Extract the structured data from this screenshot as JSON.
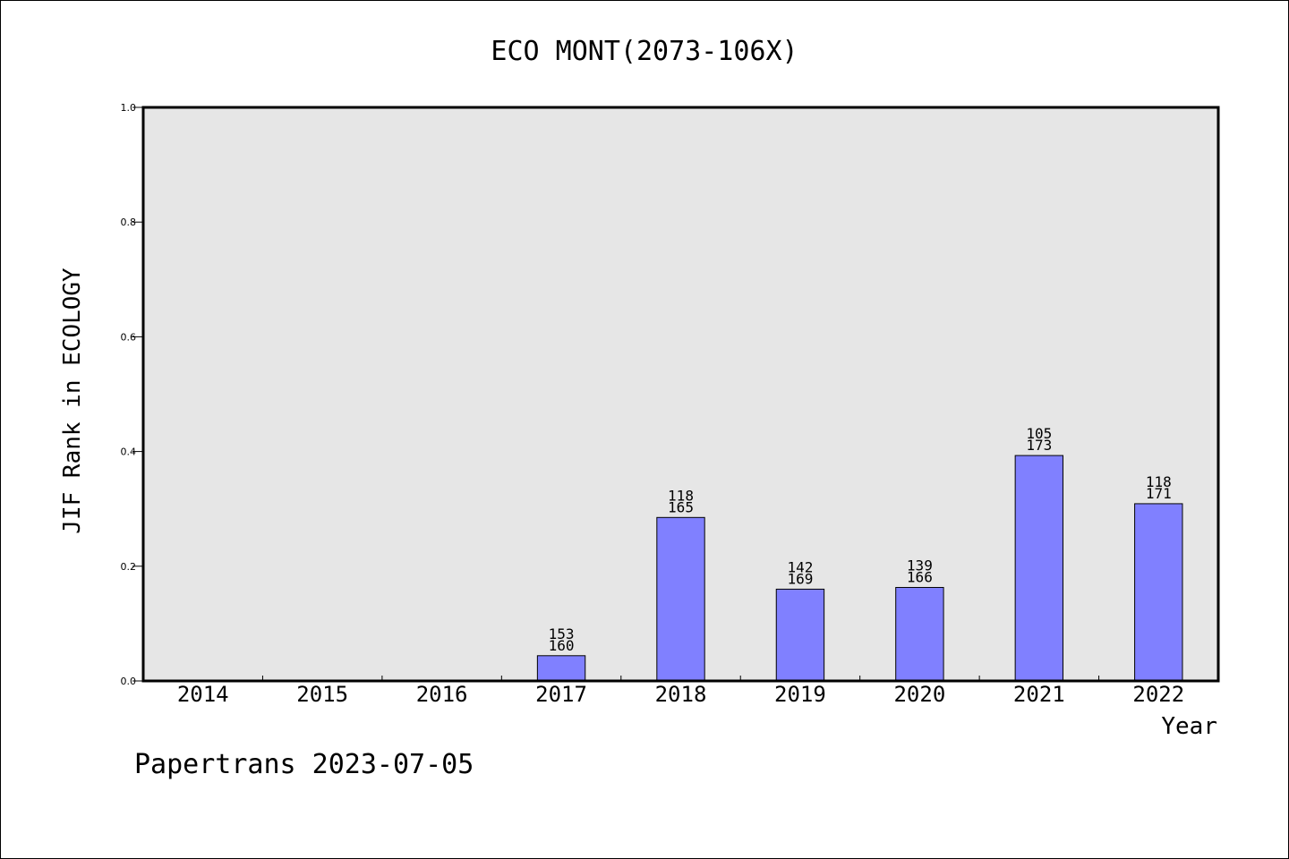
{
  "chart_data": {
    "type": "bar",
    "title": "ECO MONT(2073-106X)",
    "xlabel": "Year",
    "ylabel": "JIF Rank in ECOLOGY",
    "ylim": [
      0,
      1.0
    ],
    "yticks": [
      "0.0",
      "0.2",
      "0.4",
      "0.6",
      "0.8",
      "1.0"
    ],
    "categories": [
      "2014",
      "2015",
      "2016",
      "2017",
      "2018",
      "2019",
      "2020",
      "2021",
      "2022"
    ],
    "values": [
      null,
      null,
      null,
      0.044,
      0.285,
      0.16,
      0.163,
      0.393,
      0.309
    ],
    "rank": [
      null,
      null,
      null,
      "153",
      "118",
      "142",
      "139",
      "105",
      "118"
    ],
    "total": [
      null,
      null,
      null,
      "160",
      "165",
      "169",
      "166",
      "173",
      "171"
    ],
    "bar_color": "#8080ff",
    "plot_background": "#e6e6e6",
    "grid": false
  },
  "footer": "Papertrans 2023-07-05"
}
